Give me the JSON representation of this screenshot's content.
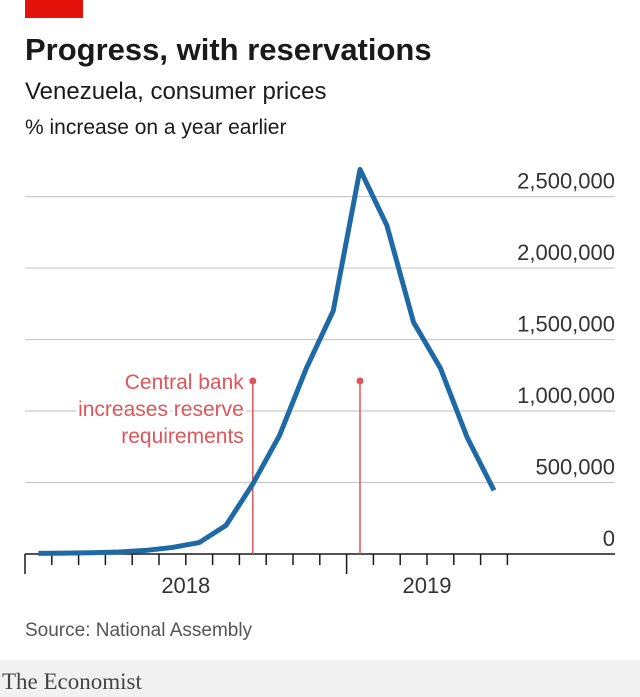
{
  "chart_data": {
    "type": "line",
    "title": "Progress, with reservations",
    "subtitle": "Venezuela, consumer prices",
    "unit_label": "% increase on a year earlier",
    "categories": [
      null,
      null,
      null,
      null,
      null,
      null,
      null,
      null,
      null,
      null,
      null,
      null,
      null,
      null,
      null,
      null,
      null,
      null
    ],
    "x_labels": [
      "2018",
      "2019"
    ],
    "series": [
      {
        "name": "Consumer prices",
        "color": "#1f6aa5",
        "values": [
          4000,
          6000,
          9000,
          14000,
          25000,
          46000,
          80000,
          200000,
          490000,
          830000,
          1300000,
          1700000,
          2690000,
          2300000,
          1620000,
          1300000,
          815000,
          445000
        ]
      }
    ],
    "ylim": [
      0,
      2700000
    ],
    "yticks": [
      0,
      {
        "value": 500000,
        "label": "500,000"
      },
      {
        "value": 1000000,
        "label": "1,000,000"
      },
      {
        "value": 1500000,
        "label": "1,500,000"
      },
      {
        "value": 2000000,
        "label": "2,000,000"
      },
      {
        "value": 2500000,
        "label": "2,500,000"
      }
    ],
    "grid": true,
    "annotation": {
      "text": [
        "Central bank",
        "increases reserve",
        "requirements"
      ],
      "at": [
        8,
        12
      ],
      "color": "#e0555a"
    },
    "source": "Source: National Assembly",
    "brand": "The Economist"
  }
}
